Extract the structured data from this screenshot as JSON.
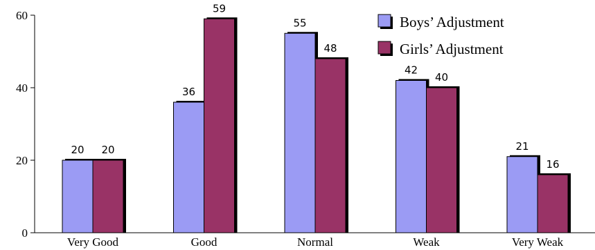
{
  "chart_data": {
    "type": "bar",
    "categories": [
      "Very Good",
      "Good",
      "Normal",
      "Weak",
      "Very Weak"
    ],
    "series": [
      {
        "name": "Boys’ Adjustment",
        "values": [
          20,
          36,
          55,
          42,
          21
        ],
        "color": "#9b9bf4"
      },
      {
        "name": "Girls’ Adjustment",
        "values": [
          20,
          59,
          48,
          40,
          16
        ],
        "color": "#993366"
      }
    ],
    "ylim": [
      0,
      60
    ],
    "yticks": [
      0,
      20,
      40,
      60
    ],
    "grid": false,
    "legend": "top-right",
    "data_labels": true
  }
}
